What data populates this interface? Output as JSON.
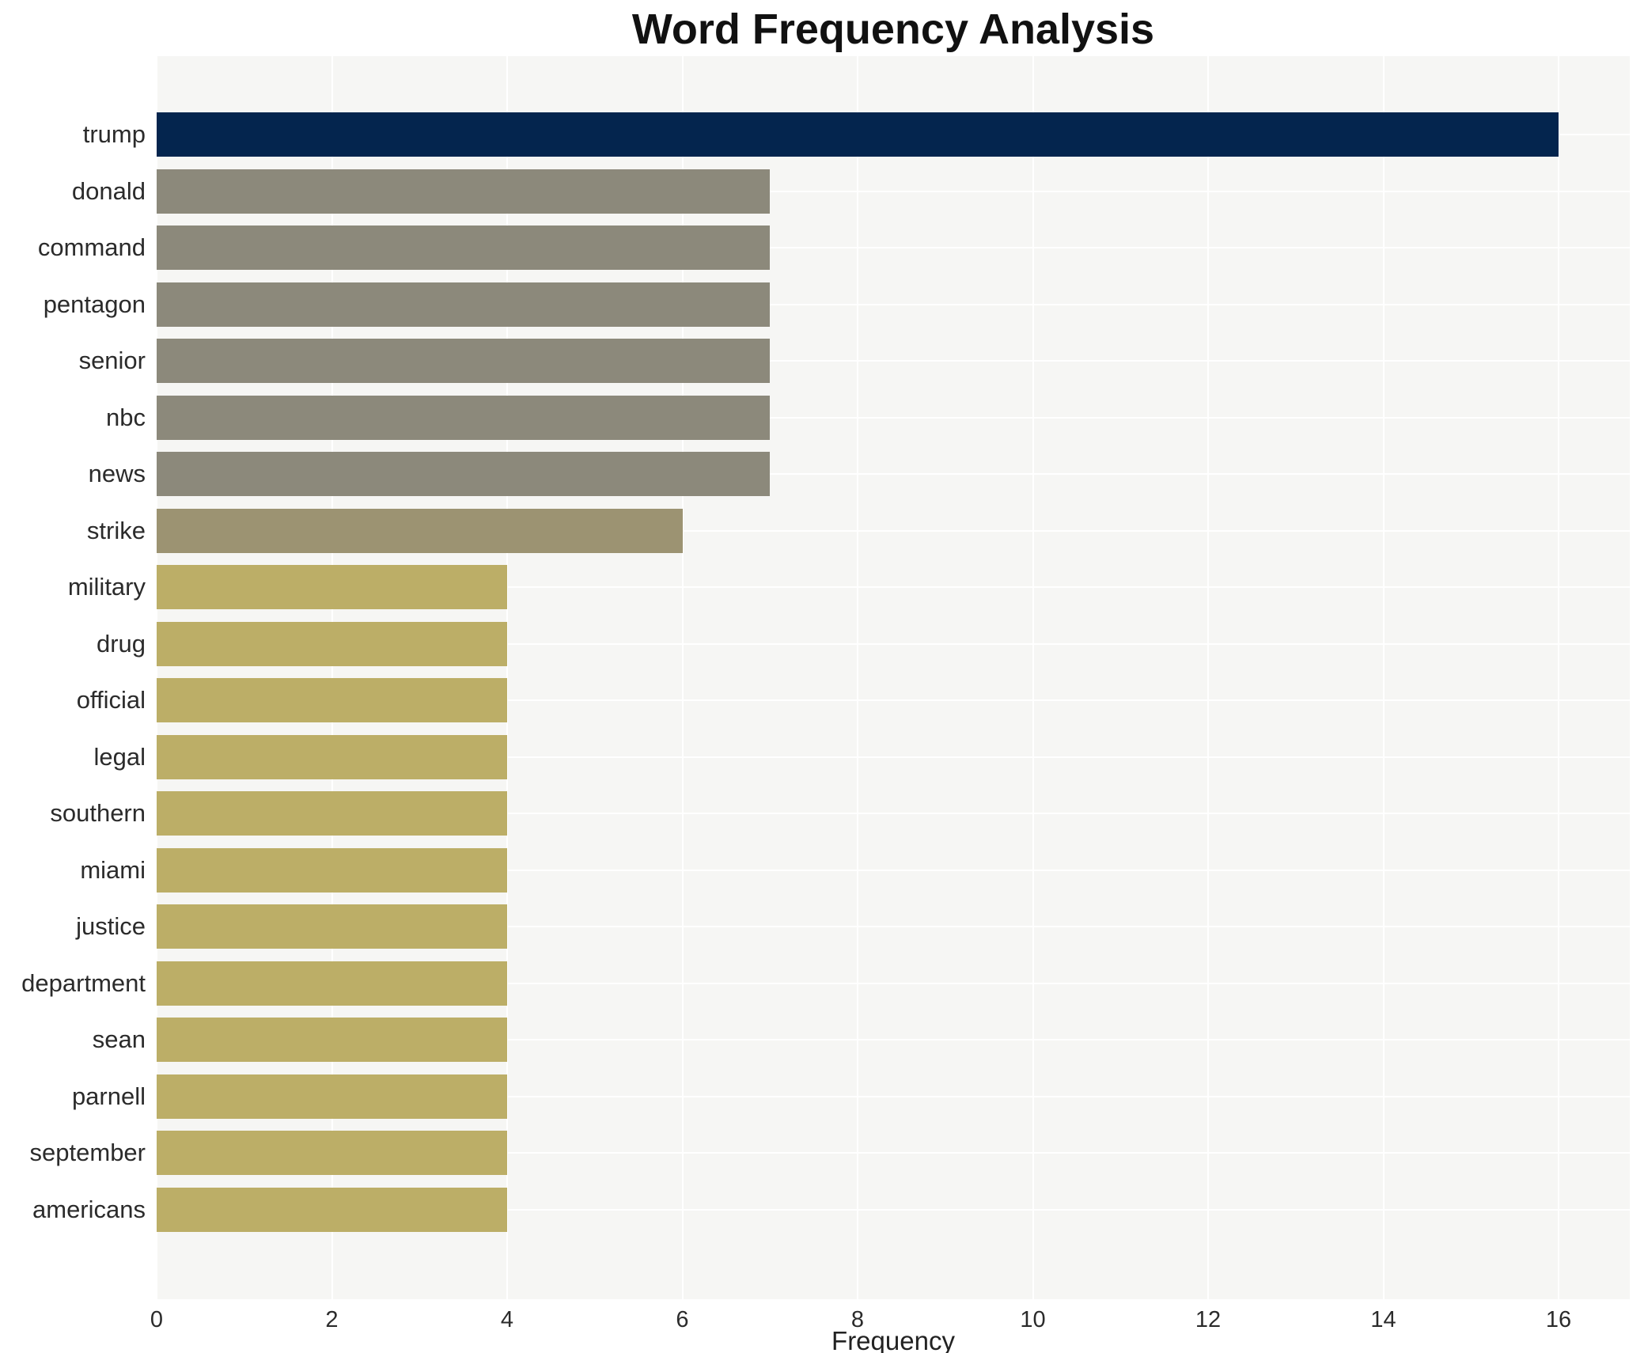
{
  "title": "Word Frequency Analysis",
  "chart_data": {
    "type": "bar",
    "orientation": "horizontal",
    "title": "Word Frequency Analysis",
    "xlabel": "Frequency",
    "ylabel": "",
    "categories": [
      "trump",
      "donald",
      "command",
      "pentagon",
      "senior",
      "nbc",
      "news",
      "strike",
      "military",
      "drug",
      "official",
      "legal",
      "southern",
      "miami",
      "justice",
      "department",
      "sean",
      "parnell",
      "september",
      "americans"
    ],
    "values": [
      16,
      7,
      7,
      7,
      7,
      7,
      7,
      6,
      4,
      4,
      4,
      4,
      4,
      4,
      4,
      4,
      4,
      4,
      4,
      4
    ],
    "bar_colors": [
      "#04254e",
      "#8c897b",
      "#8c897b",
      "#8c897b",
      "#8c897b",
      "#8c897b",
      "#8c897b",
      "#9c9372",
      "#bcae67",
      "#bcae67",
      "#bcae67",
      "#bcae67",
      "#bcae67",
      "#bcae67",
      "#bcae67",
      "#bcae67",
      "#bcae67",
      "#bcae67",
      "#bcae67",
      "#bcae67"
    ],
    "xticks": [
      0,
      2,
      4,
      6,
      8,
      10,
      12,
      14,
      16
    ],
    "xlim": [
      0,
      16.8
    ],
    "grid": true,
    "legend": false,
    "colors": {
      "highlight": "#04254e",
      "tier_high": "#8c897b",
      "tier_mid": "#9c9372",
      "tier_low": "#bcae67",
      "panel_bg": "#f6f6f4",
      "grid": "#ffffff",
      "text": "#2b2b2b"
    }
  }
}
